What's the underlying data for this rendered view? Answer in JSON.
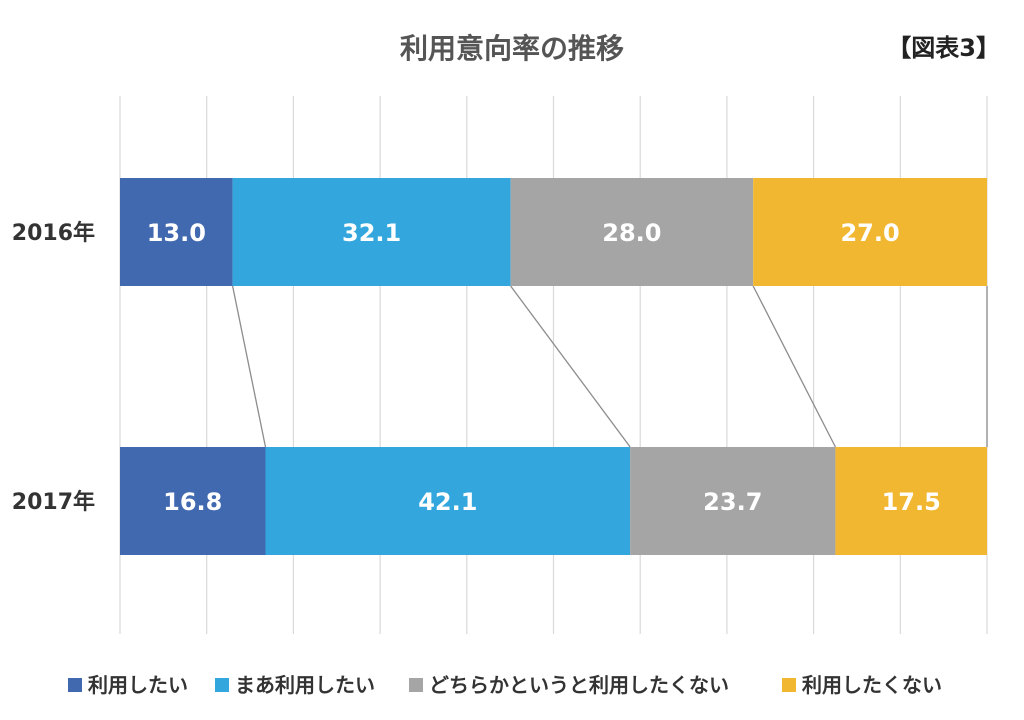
{
  "chart_data": {
    "type": "bar",
    "orientation": "horizontal",
    "stacked": true,
    "percent_stacked": true,
    "title": "利用意向率の推移",
    "figure_label": "【図表3】",
    "categories": [
      "2016年",
      "2017年"
    ],
    "series": [
      {
        "name": "利用したい",
        "color": "#4169B0",
        "values": [
          13.0,
          16.8
        ],
        "labels": [
          "13.0",
          "16.8"
        ]
      },
      {
        "name": "まあ利用したい",
        "color": "#33A7DD",
        "values": [
          32.1,
          42.1
        ],
        "labels": [
          "32.1",
          "42.1"
        ]
      },
      {
        "name": "どちらかというと利用したくない",
        "color": "#A5A5A5",
        "values": [
          28.0,
          23.7
        ],
        "labels": [
          "28.0",
          "23.7"
        ]
      },
      {
        "name": "利用したくない",
        "color": "#F2B731",
        "values": [
          27.0,
          17.5
        ],
        "labels": [
          "27.0",
          "17.5"
        ]
      }
    ],
    "xlim": [
      0,
      100
    ],
    "grid": true,
    "series_lines": true,
    "legend_position": "bottom"
  }
}
